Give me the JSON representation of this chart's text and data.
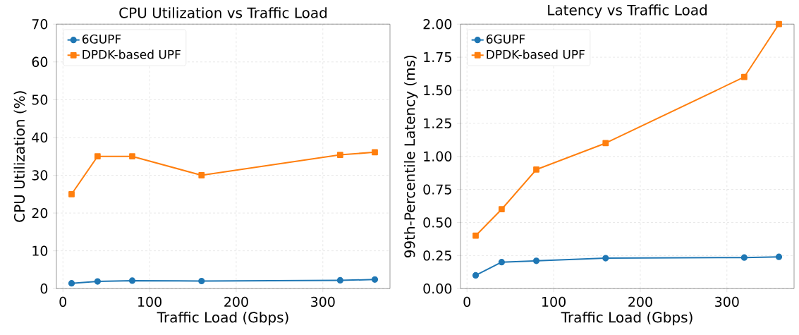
{
  "chart_data": [
    {
      "type": "line",
      "title": "CPU Utilization vs Traffic Load",
      "xlabel": "Traffic Load (Gbps)",
      "ylabel": "CPU Utilization (%)",
      "x": [
        10,
        40,
        80,
        160,
        320,
        360
      ],
      "series": [
        {
          "name": "6GUPF",
          "color": "#1f77b4",
          "marker": "circle",
          "values": [
            1.4,
            1.9,
            2.1,
            2.0,
            2.2,
            2.4
          ]
        },
        {
          "name": "DPDK-based UPF",
          "color": "#ff7f0e",
          "marker": "square",
          "values": [
            25,
            35,
            35,
            30,
            35.4,
            36.1
          ]
        }
      ],
      "xlim": [
        -7.5,
        377.5
      ],
      "ylim": [
        0,
        70
      ],
      "xticks": [
        0,
        100,
        200,
        300
      ],
      "yticks": [
        0,
        10,
        20,
        30,
        40,
        50,
        60,
        70
      ],
      "grid": true,
      "legend": "top left",
      "line_style": "solid"
    },
    {
      "type": "line",
      "title": "Latency vs Traffic Load",
      "xlabel": "Traffic Load (Gbps)",
      "ylabel": "99th-Percentile Latency (ms)",
      "x": [
        10,
        40,
        80,
        160,
        320,
        360
      ],
      "series": [
        {
          "name": "6GUPF",
          "color": "#1f77b4",
          "marker": "circle",
          "values": [
            0.1,
            0.2,
            0.21,
            0.23,
            0.235,
            0.24
          ]
        },
        {
          "name": "DPDK-based UPF",
          "color": "#ff7f0e",
          "marker": "square",
          "values": [
            0.4,
            0.6,
            0.9,
            1.1,
            1.6,
            2.0
          ]
        }
      ],
      "xlim": [
        -7.5,
        377.5
      ],
      "ylim": [
        0,
        2.0
      ],
      "xticks": [
        0,
        100,
        200,
        300
      ],
      "yticks": [
        {
          "value": 0,
          "label": "0.00"
        },
        {
          "value": 0.25,
          "label": "0.25"
        },
        {
          "value": 0.5,
          "label": "0.50"
        },
        {
          "value": 0.75,
          "label": "0.75"
        },
        {
          "value": 1.0,
          "label": "1.00"
        },
        {
          "value": 1.25,
          "label": "1.25"
        },
        {
          "value": 1.5,
          "label": "1.50"
        },
        {
          "value": 1.75,
          "label": "1.75"
        },
        {
          "value": 2.0,
          "label": "2.00"
        }
      ],
      "grid": true,
      "legend": "top left",
      "line_style": "solid"
    }
  ]
}
